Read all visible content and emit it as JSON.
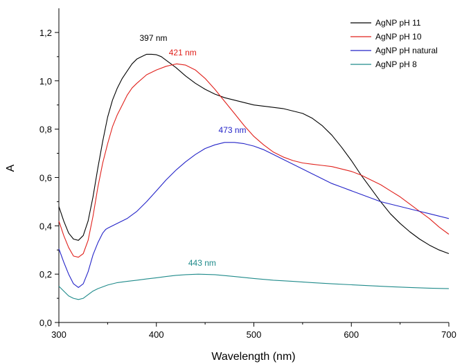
{
  "chart_data": {
    "type": "line",
    "xlabel": "Wavelength (nm)",
    "ylabel": "A",
    "xlim": [
      300,
      700
    ],
    "ylim": [
      0,
      1.3
    ],
    "x_ticks": [
      300,
      400,
      500,
      600,
      700
    ],
    "x_tick_labels": [
      "300",
      "400",
      "500",
      "600",
      "700"
    ],
    "y_ticks": [
      0,
      0.2,
      0.4,
      0.6,
      0.8,
      1.0,
      1.2
    ],
    "y_tick_labels": [
      "0,0",
      "0,2",
      "0,4",
      "0,6",
      "0,8",
      "1,0",
      "1,2"
    ],
    "grid": false,
    "legend_position": "top-right",
    "series": [
      {
        "name": "AgNP pH 11",
        "color": "#000000",
        "points": [
          [
            300,
            0.48
          ],
          [
            305,
            0.42
          ],
          [
            310,
            0.37
          ],
          [
            315,
            0.345
          ],
          [
            320,
            0.34
          ],
          [
            325,
            0.36
          ],
          [
            330,
            0.42
          ],
          [
            335,
            0.52
          ],
          [
            340,
            0.64
          ],
          [
            345,
            0.75
          ],
          [
            350,
            0.85
          ],
          [
            355,
            0.92
          ],
          [
            360,
            0.97
          ],
          [
            365,
            1.01
          ],
          [
            370,
            1.04
          ],
          [
            375,
            1.07
          ],
          [
            380,
            1.09
          ],
          [
            385,
            1.1
          ],
          [
            390,
            1.11
          ],
          [
            395,
            1.11
          ],
          [
            400,
            1.108
          ],
          [
            405,
            1.1
          ],
          [
            410,
            1.085
          ],
          [
            420,
            1.055
          ],
          [
            430,
            1.02
          ],
          [
            440,
            0.99
          ],
          [
            450,
            0.965
          ],
          [
            460,
            0.945
          ],
          [
            470,
            0.93
          ],
          [
            480,
            0.92
          ],
          [
            490,
            0.91
          ],
          [
            500,
            0.9
          ],
          [
            510,
            0.895
          ],
          [
            520,
            0.89
          ],
          [
            530,
            0.885
          ],
          [
            540,
            0.875
          ],
          [
            550,
            0.865
          ],
          [
            560,
            0.845
          ],
          [
            570,
            0.815
          ],
          [
            580,
            0.775
          ],
          [
            590,
            0.725
          ],
          [
            600,
            0.67
          ],
          [
            610,
            0.61
          ],
          [
            620,
            0.555
          ],
          [
            630,
            0.5
          ],
          [
            640,
            0.45
          ],
          [
            650,
            0.41
          ],
          [
            660,
            0.375
          ],
          [
            670,
            0.345
          ],
          [
            680,
            0.32
          ],
          [
            690,
            0.3
          ],
          [
            700,
            0.285
          ]
        ]
      },
      {
        "name": "AgNP pH 10",
        "color": "#e0201b",
        "points": [
          [
            300,
            0.42
          ],
          [
            305,
            0.36
          ],
          [
            310,
            0.31
          ],
          [
            315,
            0.275
          ],
          [
            320,
            0.27
          ],
          [
            325,
            0.285
          ],
          [
            330,
            0.34
          ],
          [
            335,
            0.44
          ],
          [
            340,
            0.56
          ],
          [
            345,
            0.66
          ],
          [
            350,
            0.74
          ],
          [
            355,
            0.81
          ],
          [
            360,
            0.86
          ],
          [
            365,
            0.9
          ],
          [
            370,
            0.94
          ],
          [
            375,
            0.97
          ],
          [
            380,
            0.99
          ],
          [
            390,
            1.025
          ],
          [
            400,
            1.045
          ],
          [
            410,
            1.06
          ],
          [
            415,
            1.065
          ],
          [
            421,
            1.07
          ],
          [
            430,
            1.065
          ],
          [
            440,
            1.045
          ],
          [
            450,
            1.01
          ],
          [
            460,
            0.965
          ],
          [
            470,
            0.915
          ],
          [
            480,
            0.865
          ],
          [
            490,
            0.815
          ],
          [
            500,
            0.77
          ],
          [
            510,
            0.735
          ],
          [
            520,
            0.705
          ],
          [
            530,
            0.685
          ],
          [
            540,
            0.67
          ],
          [
            550,
            0.66
          ],
          [
            560,
            0.655
          ],
          [
            570,
            0.65
          ],
          [
            580,
            0.645
          ],
          [
            590,
            0.635
          ],
          [
            600,
            0.625
          ],
          [
            610,
            0.61
          ],
          [
            620,
            0.59
          ],
          [
            630,
            0.57
          ],
          [
            640,
            0.545
          ],
          [
            650,
            0.52
          ],
          [
            660,
            0.49
          ],
          [
            670,
            0.46
          ],
          [
            680,
            0.43
          ],
          [
            690,
            0.395
          ],
          [
            700,
            0.365
          ]
        ]
      },
      {
        "name": "AgNP pH natural",
        "color": "#2323c8",
        "points": [
          [
            300,
            0.305
          ],
          [
            305,
            0.25
          ],
          [
            310,
            0.2
          ],
          [
            315,
            0.16
          ],
          [
            320,
            0.145
          ],
          [
            325,
            0.16
          ],
          [
            330,
            0.21
          ],
          [
            335,
            0.28
          ],
          [
            340,
            0.33
          ],
          [
            345,
            0.37
          ],
          [
            348,
            0.385
          ],
          [
            350,
            0.39
          ],
          [
            355,
            0.4
          ],
          [
            360,
            0.41
          ],
          [
            365,
            0.42
          ],
          [
            370,
            0.43
          ],
          [
            375,
            0.445
          ],
          [
            380,
            0.46
          ],
          [
            390,
            0.5
          ],
          [
            400,
            0.545
          ],
          [
            410,
            0.59
          ],
          [
            420,
            0.63
          ],
          [
            430,
            0.665
          ],
          [
            440,
            0.695
          ],
          [
            450,
            0.72
          ],
          [
            460,
            0.735
          ],
          [
            470,
            0.745
          ],
          [
            480,
            0.745
          ],
          [
            490,
            0.74
          ],
          [
            500,
            0.73
          ],
          [
            510,
            0.715
          ],
          [
            520,
            0.695
          ],
          [
            530,
            0.675
          ],
          [
            540,
            0.655
          ],
          [
            550,
            0.635
          ],
          [
            560,
            0.615
          ],
          [
            570,
            0.595
          ],
          [
            580,
            0.575
          ],
          [
            590,
            0.56
          ],
          [
            600,
            0.545
          ],
          [
            610,
            0.53
          ],
          [
            620,
            0.515
          ],
          [
            630,
            0.5
          ],
          [
            640,
            0.49
          ],
          [
            650,
            0.48
          ],
          [
            660,
            0.47
          ],
          [
            670,
            0.46
          ],
          [
            680,
            0.45
          ],
          [
            690,
            0.44
          ],
          [
            700,
            0.43
          ]
        ]
      },
      {
        "name": "AgNP pH 8",
        "color": "#1e8a8a",
        "points": [
          [
            300,
            0.15
          ],
          [
            305,
            0.13
          ],
          [
            310,
            0.11
          ],
          [
            315,
            0.1
          ],
          [
            320,
            0.095
          ],
          [
            325,
            0.1
          ],
          [
            330,
            0.115
          ],
          [
            335,
            0.13
          ],
          [
            340,
            0.14
          ],
          [
            350,
            0.155
          ],
          [
            360,
            0.165
          ],
          [
            370,
            0.17
          ],
          [
            380,
            0.175
          ],
          [
            390,
            0.18
          ],
          [
            400,
            0.185
          ],
          [
            410,
            0.19
          ],
          [
            420,
            0.195
          ],
          [
            430,
            0.198
          ],
          [
            443,
            0.2
          ],
          [
            460,
            0.198
          ],
          [
            480,
            0.19
          ],
          [
            500,
            0.182
          ],
          [
            520,
            0.175
          ],
          [
            540,
            0.17
          ],
          [
            560,
            0.165
          ],
          [
            580,
            0.16
          ],
          [
            600,
            0.156
          ],
          [
            620,
            0.152
          ],
          [
            640,
            0.148
          ],
          [
            660,
            0.145
          ],
          [
            680,
            0.142
          ],
          [
            700,
            0.14
          ]
        ]
      }
    ],
    "annotations": [
      {
        "text": "397 nm",
        "x": 397,
        "y": 1.165,
        "color": "#000000"
      },
      {
        "text": "421 nm",
        "x": 427,
        "y": 1.105,
        "color": "#e0201b"
      },
      {
        "text": "473 nm",
        "x": 478,
        "y": 0.785,
        "color": "#2323c8"
      },
      {
        "text": "443 nm",
        "x": 447,
        "y": 0.235,
        "color": "#1e8a8a"
      }
    ]
  }
}
